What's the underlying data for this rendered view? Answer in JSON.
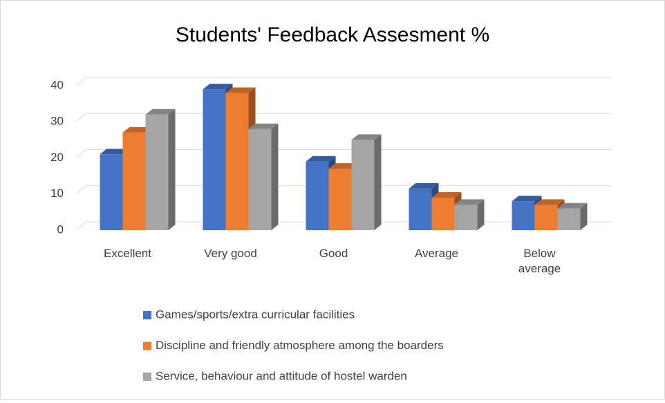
{
  "chart_data": {
    "type": "bar3d",
    "title": "Students' Feedback Assesment %",
    "categories": [
      "Excellent",
      "Very good",
      "Good",
      "Average",
      "Below average"
    ],
    "series": [
      {
        "name": "Games/sports/extra curricular facilities",
        "color": "#4472c4",
        "values": [
          21,
          39,
          19,
          11.5,
          8
        ]
      },
      {
        "name": "Discipline and friendly atmosphere among the boarders",
        "color": "#ed7d31",
        "values": [
          27,
          38,
          17,
          9,
          7
        ]
      },
      {
        "name": "Service, behaviour and attitude of hostel warden",
        "color": "#a5a5a5",
        "values": [
          32,
          28,
          25,
          7,
          6
        ]
      }
    ],
    "ylim": [
      0,
      40
    ],
    "yticks": [
      0,
      10,
      20,
      30,
      40
    ],
    "grid": true,
    "legend": "bottom"
  }
}
